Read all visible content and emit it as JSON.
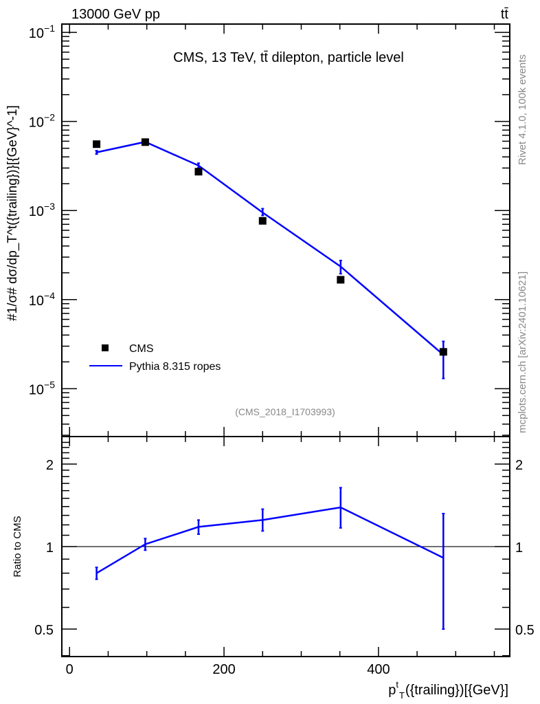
{
  "header": {
    "left": "13000 GeV pp",
    "right": "tt̄"
  },
  "side_labels": {
    "rivet": "Rivet 4.1.0,  100k events",
    "mcplots": "mcplots.cern.ch [arXiv:2401.10621]"
  },
  "colors": {
    "data": "#000000",
    "mc": "#0000ff",
    "side_text": "#888888"
  },
  "chart_data": [
    {
      "type": "scatter",
      "title": "CMS, 13 TeV, tt̄ dilepton, particle level",
      "analysis_id": "(CMS_2018_I1703993)",
      "ylabel": "#1/σ# dσ/dp_T^t({trailing})}[{GeV}^-1]",
      "yscale": "log",
      "xlim": [
        -10,
        570
      ],
      "ylim": [
        2.9e-06,
        0.124
      ],
      "ytick_labels": [
        {
          "v": 0.1,
          "exp": "−1"
        },
        {
          "v": 0.01,
          "exp": "−2"
        },
        {
          "v": 0.001,
          "exp": "−3"
        },
        {
          "v": 0.0001,
          "exp": "−4"
        },
        {
          "v": 1e-05,
          "exp": "−5"
        }
      ],
      "ytick_base": "10",
      "legend": {
        "position": "bottom-left",
        "entries": [
          "CMS",
          "Pythia 8.315 ropes"
        ]
      },
      "x": [
        35,
        98,
        167,
        250,
        351,
        484
      ],
      "series": [
        {
          "name": "CMS",
          "style": "marker",
          "values": [
            0.00556,
            0.00586,
            0.00273,
            0.000766,
            0.000167,
            2.59e-05
          ]
        },
        {
          "name": "Pythia 8.315 ropes",
          "style": "line",
          "values": [
            0.0045,
            0.0059,
            0.0032,
            0.00095,
            0.000235,
            2.4e-05
          ],
          "err_low": [
            0.0043,
            0.0057,
            0.003,
            0.00088,
            0.000195,
            1.3e-05
          ],
          "err_high": [
            0.0047,
            0.0061,
            0.0034,
            0.00105,
            0.000275,
            3.4e-05
          ]
        }
      ]
    },
    {
      "type": "line",
      "ylabel": "Ratio to CMS",
      "xlabel": "p_T^t({trailing})[{GeV}]",
      "xlabel_main": "p",
      "xlabel_sup": "t",
      "xlabel_sub": "T",
      "xlabel_rest": "({trailing})[{GeV}]",
      "yscale": "log",
      "xlim": [
        -10,
        570
      ],
      "ylim": [
        0.397,
        2.52
      ],
      "xticks": [
        {
          "v": 0,
          "label": "0"
        },
        {
          "v": 200,
          "label": "200"
        },
        {
          "v": 400,
          "label": "400"
        }
      ],
      "yticks": [
        {
          "v": 0.5,
          "label": "0.5"
        },
        {
          "v": 1,
          "label": "1"
        },
        {
          "v": 2,
          "label": "2"
        }
      ],
      "reference_line": 1,
      "x": [
        35,
        98,
        167,
        250,
        351,
        484
      ],
      "series": [
        {
          "name": "Pythia 8.315 ropes",
          "values": [
            0.8,
            1.02,
            1.18,
            1.25,
            1.39,
            0.91
          ],
          "err_low": [
            0.76,
            0.97,
            1.11,
            1.14,
            1.17,
            0.5
          ],
          "err_high": [
            0.84,
            1.07,
            1.25,
            1.37,
            1.64,
            1.32
          ]
        }
      ]
    }
  ]
}
